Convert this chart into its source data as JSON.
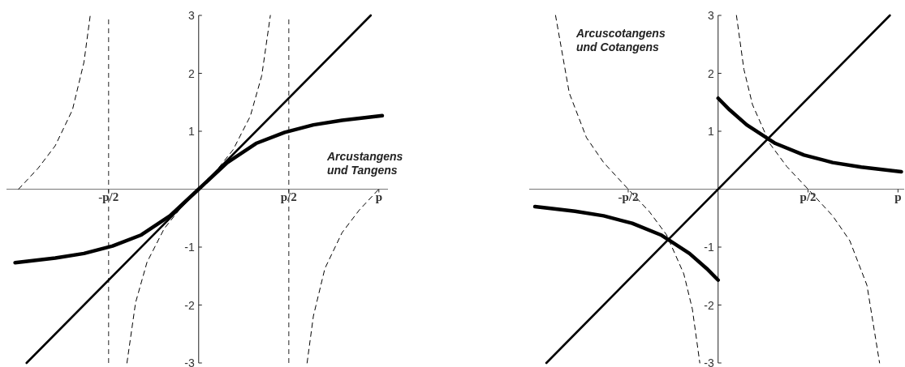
{
  "chart_data": [
    {
      "type": "line",
      "xlim": [
        -3.35,
        3.3
      ],
      "ylim": [
        -3,
        3
      ],
      "xticks": [
        {
          "value": -1.5708,
          "label": "-p/2"
        },
        {
          "value": 1.5708,
          "label": "p/2"
        },
        {
          "value": 3.1416,
          "label": "p"
        }
      ],
      "yticks": [
        -3,
        -2,
        -1,
        1,
        2,
        3
      ],
      "series": [
        {
          "color": "#000000",
          "line_style": "solid",
          "x": [
            -3,
            3
          ],
          "values": [
            -3,
            3
          ]
        },
        {
          "color": "#000000",
          "line_style": "solid",
          "x": [
            -3.2,
            -2.5,
            -2,
            -1.5,
            -1,
            -0.5,
            0,
            0.5,
            1,
            1.5,
            2,
            2.5,
            3.2
          ],
          "values": [
            -1.27,
            -1.19,
            -1.11,
            -0.98,
            -0.79,
            -0.46,
            0,
            0.46,
            0.79,
            0.98,
            1.11,
            1.19,
            1.27
          ]
        },
        {
          "color": "#000000",
          "line_style": "dashed",
          "x": [
            -3.14,
            -2.8,
            -2.5,
            -2.2,
            -2,
            -1.89,
            null,
            -1.25,
            -1.1,
            -0.9,
            -0.6,
            -0.3,
            0,
            0.3,
            0.6,
            0.9,
            1.1,
            1.25,
            null,
            1.89,
            2,
            2.2,
            2.5,
            2.8,
            3.14
          ],
          "values": [
            0,
            0.36,
            0.75,
            1.37,
            2.19,
            3,
            null,
            -3,
            -1.96,
            -1.26,
            -0.68,
            -0.31,
            0,
            0.31,
            0.68,
            1.26,
            1.96,
            3,
            null,
            -3,
            -2.19,
            -1.37,
            -0.75,
            -0.36,
            0
          ]
        }
      ],
      "ref_lines": [
        {
          "axis": "x",
          "value": -1.5708,
          "color": "#555555",
          "line_style": "dashed"
        },
        {
          "axis": "x",
          "value": 1.5708,
          "color": "#555555",
          "line_style": "dashed"
        }
      ],
      "annotations": [
        "Arcustangens\nund Tangens"
      ]
    },
    {
      "type": "line",
      "xlim": [
        -3.3,
        3.25
      ],
      "ylim": [
        -3,
        3
      ],
      "xticks": [
        {
          "value": -1.5708,
          "label": "-p/2"
        },
        {
          "value": 1.5708,
          "label": "p/2"
        },
        {
          "value": 3.1416,
          "label": "p"
        }
      ],
      "yticks": [
        -3,
        -2,
        -1,
        1,
        2,
        3
      ],
      "series": [
        {
          "color": "#000000",
          "line_style": "solid",
          "x": [
            -3,
            3
          ],
          "values": [
            -3,
            3
          ]
        },
        {
          "color": "#000000",
          "line_style": "solid",
          "x": [
            -3.2,
            -2.5,
            -2,
            -1.5,
            -1,
            -0.5,
            -0.2,
            0,
            null,
            0,
            0.2,
            0.5,
            1,
            1.5,
            2,
            2.5,
            3.2
          ],
          "values": [
            -0.3,
            -0.38,
            -0.46,
            -0.59,
            -0.79,
            -1.11,
            -1.37,
            -1.57,
            null,
            1.57,
            1.37,
            1.11,
            0.79,
            0.59,
            0.46,
            0.38,
            0.3
          ]
        },
        {
          "color": "#000000",
          "line_style": "dashed",
          "x": [
            -2.84,
            -2.6,
            -2.3,
            -2,
            -1.5708,
            -1.2,
            -0.9,
            -0.6,
            -0.45,
            -0.32,
            null,
            0.32,
            0.45,
            0.6,
            0.9,
            1.2,
            1.5708,
            2,
            2.3,
            2.6,
            2.82
          ],
          "values": [
            3,
            1.66,
            0.89,
            0.46,
            0,
            -0.39,
            -0.79,
            -1.46,
            -2.07,
            -3,
            null,
            3,
            2.07,
            1.46,
            0.79,
            0.39,
            0,
            -0.46,
            -0.89,
            -1.66,
            -3
          ]
        }
      ],
      "annotations": [
        "Arcuscotangens\nund Cotangens"
      ]
    }
  ]
}
